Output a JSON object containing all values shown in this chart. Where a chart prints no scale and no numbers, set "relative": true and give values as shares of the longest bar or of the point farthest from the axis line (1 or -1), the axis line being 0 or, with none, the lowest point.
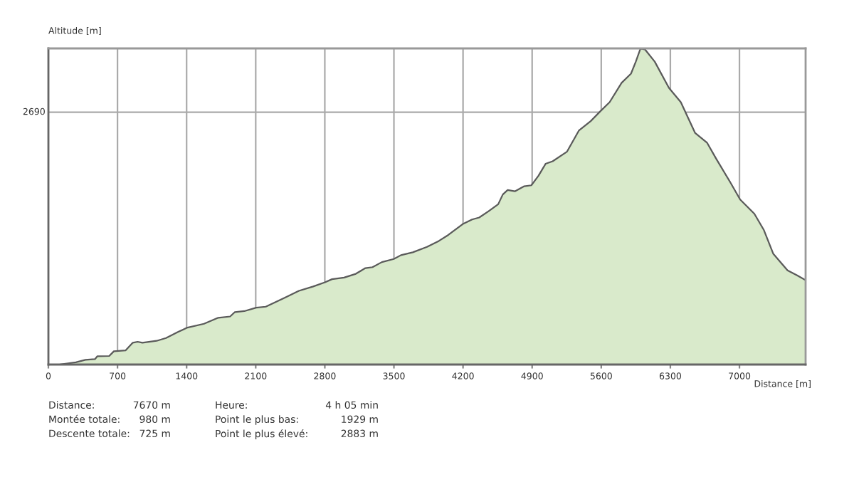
{
  "chart_data": {
    "type": "area",
    "relative": true,
    "xlabel": "Distance [m]",
    "ylabel": "Altitude [m]",
    "x": [
      0,
      111,
      134,
      278,
      375,
      471,
      495,
      616,
      663,
      783,
      855,
      904,
      952,
      1096,
      1192,
      1312,
      1409,
      1576,
      1720,
      1841,
      1889,
      1985,
      2105,
      2202,
      2393,
      2537,
      2682,
      2801,
      2873,
      2995,
      3114,
      3211,
      3283,
      3378,
      3499,
      3571,
      3691,
      3835,
      3955,
      4051,
      4196,
      4292,
      4364,
      4459,
      4556,
      4603,
      4652,
      4725,
      4820,
      4892,
      4964,
      5036,
      5108,
      5252,
      5373,
      5493,
      5590,
      5685,
      5806,
      5901,
      5950,
      5998,
      6045,
      6142,
      6286,
      6406,
      6550,
      6671,
      6766,
      6910,
      7007,
      7151,
      7248,
      7343,
      7487,
      7584,
      7670
    ],
    "series": [
      {
        "color": "#d9eacb",
        "values": [
          0,
          0,
          0.001,
          0.007,
          0.015,
          0.017,
          0.026,
          0.027,
          0.042,
          0.045,
          0.069,
          0.072,
          0.069,
          0.075,
          0.084,
          0.103,
          0.117,
          0.129,
          0.148,
          0.152,
          0.166,
          0.169,
          0.18,
          0.183,
          0.211,
          0.233,
          0.247,
          0.26,
          0.27,
          0.275,
          0.287,
          0.305,
          0.308,
          0.324,
          0.334,
          0.346,
          0.355,
          0.372,
          0.391,
          0.41,
          0.444,
          0.459,
          0.465,
          0.485,
          0.507,
          0.538,
          0.552,
          0.548,
          0.564,
          0.567,
          0.597,
          0.635,
          0.643,
          0.673,
          0.74,
          0.77,
          0.801,
          0.83,
          0.891,
          0.92,
          0.958,
          1,
          0.996,
          0.958,
          0.875,
          0.83,
          0.733,
          0.702,
          0.65,
          0.575,
          0.522,
          0.477,
          0.425,
          0.35,
          0.298,
          0.282,
          0.267
        ]
      }
    ],
    "xlim": [
      0,
      7670
    ],
    "xticks": [
      0,
      700,
      1400,
      2100,
      2800,
      3500,
      4200,
      4900,
      5600,
      6300,
      7000
    ],
    "ref_lines": [
      {
        "axis": "y",
        "value": 0.798,
        "color": "#aaaaaa"
      }
    ],
    "grid": "x",
    "annotations": [
      "2690",
      "Distance:",
      "7670 m",
      "Heure:",
      "4 h 05 min",
      "Montée totale:",
      "980 m",
      "Point le plus bas:",
      "1929 m",
      "Descente totale:",
      "725 m",
      "Point le plus élevé:",
      "2883 m"
    ]
  }
}
